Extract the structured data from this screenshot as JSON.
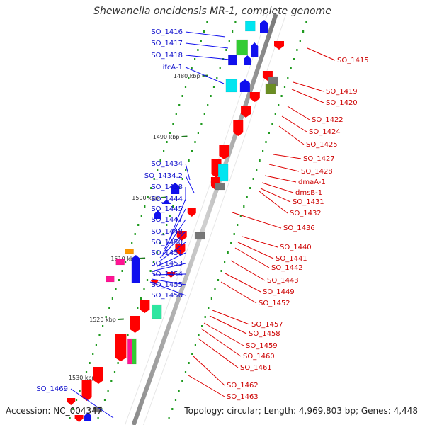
{
  "title": "Shewanella oneidensis MR-1, complete genome",
  "accession": "Accession: NC_004347",
  "summary": "Topology: circular; Length: 4,969,803 bp; Genes: 4,448",
  "ticks": [
    "1480 kbp",
    "1490 kbp",
    "1500 kbp",
    "1510 kbp",
    "1520 kbp",
    "1530 kbp"
  ],
  "left_labels": [
    "SO_1416",
    "SO_1417",
    "SO_1418",
    "ifcA-1",
    "SO_1434",
    "SO_1434.2",
    "SO_1438",
    "SO_1444",
    "SO_1445",
    "SO_1447",
    "SO_1448",
    "SO_1450",
    "SO_1451",
    "SO_1453",
    "SO_1454",
    "SO_1455",
    "SO_1456",
    "SO_1469"
  ],
  "right_labels": [
    "SO_1415",
    "SO_1419",
    "SO_1420",
    "SO_1422",
    "SO_1424",
    "SO_1425",
    "SO_1427",
    "SO_1428",
    "dmaA-1",
    "dmsB-1",
    "SO_1431",
    "SO_1432",
    "SO_1436",
    "SO_1440",
    "SO_1441",
    "SO_1442",
    "SO_1443",
    "SO_1449",
    "SO_1452",
    "SO_1457",
    "SO_1458",
    "SO_1459",
    "SO_1460",
    "SO_1461",
    "SO_1462",
    "SO_1463"
  ],
  "colors": {
    "forward": "#ff0000",
    "reverse": "#1010ee",
    "cyan": "#00e5f0",
    "green": "#33cc33",
    "gray": "#777777",
    "olive": "#6b8e23",
    "magenta": "#ff1493",
    "orange": "#ff9900",
    "teal": "#2ee6a0",
    "backbone": "#999999"
  }
}
